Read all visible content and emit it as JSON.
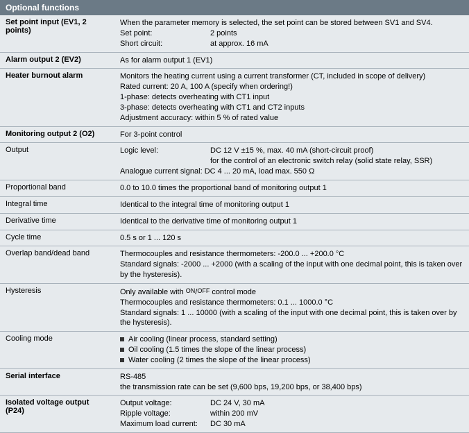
{
  "header": "Optional functions",
  "rows": [
    {
      "label": "Set point input (EV1, 2 points)",
      "bold": true,
      "content_html": "When the parameter memory is selected, the set point can be stored between SV1 and SV4.<div class='kv-row'><span class='kv-key'>Set point:</span><span>2 points</span></div><div class='kv-row'><span class='kv-key'>Short circuit:</span><span>at approx. 16 mA</span></div>"
    },
    {
      "label": "Alarm output 2 (EV2)",
      "bold": true,
      "content_html": "As for alarm output 1 (EV1)"
    },
    {
      "label": "Heater burnout alarm",
      "bold": true,
      "content_html": "Monitors the heating current using a current transformer (CT, included in scope of delivery)<br>Rated current: 20 A, 100 A (specify when ordering!)<br>1-phase: detects overheating with CT1 input<br>3-phase: detects overheating with CT1 and CT2 inputs<br>Adjustment accuracy: within 5 % of rated value"
    },
    {
      "label": "Monitoring output 2 (O2)",
      "bold": true,
      "content_html": "For 3-point control"
    },
    {
      "label": "Output",
      "bold": false,
      "content_html": "<div class='kv-row'><span class='kv-key'>Logic level:</span><span>DC 12 V ±15 %, max. 40 mA (short-circuit proof)<br>for the control of an electronic switch relay (solid state relay, SSR)</span></div>Analogue current signal: DC 4 ... 20 mA, load max. 550 Ω"
    },
    {
      "label": "Proportional band",
      "bold": false,
      "content_html": "0.0 to 10.0 times the proportional band of monitoring output 1"
    },
    {
      "label": "Integral time",
      "bold": false,
      "content_html": "Identical to the integral time of monitoring output 1"
    },
    {
      "label": "Derivative time",
      "bold": false,
      "content_html": "Identical to the derivative time of monitoring output 1"
    },
    {
      "label": "Cycle time",
      "bold": false,
      "content_html": "0.5 s or 1 ... 120 s"
    },
    {
      "label": "Overlap band/dead band",
      "bold": false,
      "content_html": "Thermocouples and resistance thermometers: -200.0 ... +200.0 °C<br>Standard signals: -2000 ... +2000 (with a scaling of the input with one decimal point, this is taken over by the hysteresis)."
    },
    {
      "label": "Hysteresis",
      "bold": false,
      "content_html": "Only available with <span class='onoff'>ON</span>/<span class='onoff'>OFF</span> control mode<br>Thermocouples and resistance thermometers: 0.1 ... 1000.0 °C<br>Standard signals: 1 ... 10000 (with a scaling of the input with one decimal point, this is taken over by the hysteresis)."
    },
    {
      "label": "Cooling mode",
      "bold": false,
      "content_html": "<div><span class='sq'></span>Air cooling (linear process, standard setting)</div><div><span class='sq'></span>Oil cooling (1.5 times the slope of the linear process)</div><div><span class='sq'></span>Water cooling (2 times the slope of the linear process)</div>"
    },
    {
      "label": "Serial interface",
      "bold": true,
      "content_html": "RS-485<br>the transmission rate can be set (9,600 bps, 19,200 bps, or 38,400 bps)"
    },
    {
      "label": "Isolated voltage output (P24)",
      "bold": true,
      "content_html": "<div class='kv-row'><span class='kv-key'>Output voltage:</span><span>DC 24 V, 30 mA</span></div><div class='kv-row'><span class='kv-key'>Ripple voltage:</span><span>within 200 mV</span></div><div class='kv-row'><span class='kv-key'>Maximum load current:</span><span>DC 30 mA</span></div>"
    }
  ]
}
